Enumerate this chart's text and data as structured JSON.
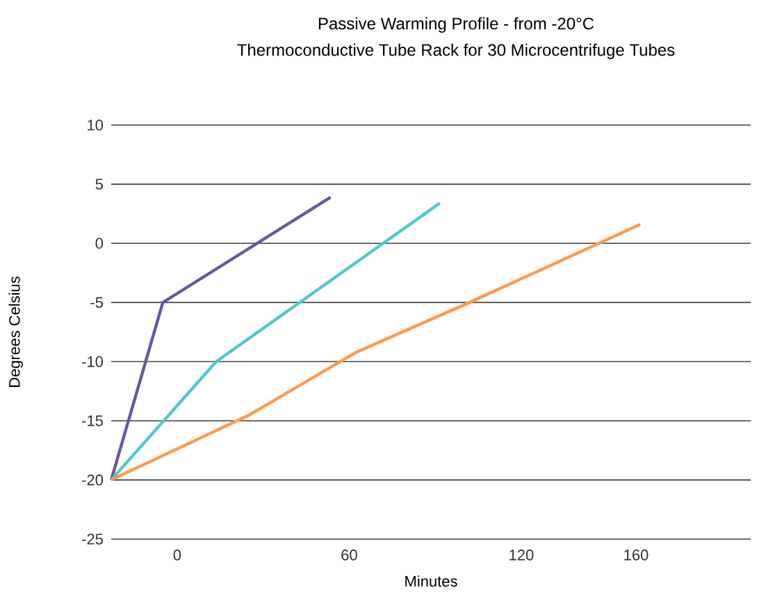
{
  "chart_data": {
    "type": "line",
    "title": "Passive Warming Profile - from -20°C",
    "subtitle": "Thermoconductive Tube Rack for 30 Microcentrifuge Tubes",
    "xlabel": "Minutes",
    "ylabel": "Degrees Celsius",
    "xlim": [
      -23,
      200
    ],
    "xticks": [
      0,
      60,
      120,
      160
    ],
    "ylim": [
      -25,
      10
    ],
    "yticks": [
      -25,
      -20,
      -15,
      -10,
      -5,
      0,
      5,
      10
    ],
    "grid": "y",
    "marker": "none",
    "line_style": "solid",
    "series": [
      {
        "color": "#6a56a0",
        "x": [
          -23,
          -5,
          53.5
        ],
        "values": [
          -20,
          -5,
          3.9
        ]
      },
      {
        "color": "#4fc9cc",
        "x": [
          -23,
          13.6,
          91.6
        ],
        "values": [
          -20,
          -10,
          3.4
        ]
      },
      {
        "color": "#ff9a4a",
        "x": [
          -23,
          25.2,
          62.5,
          101,
          161.5
        ],
        "values": [
          -20,
          -14.5,
          -9.2,
          -5.1,
          1.6
        ]
      }
    ]
  }
}
